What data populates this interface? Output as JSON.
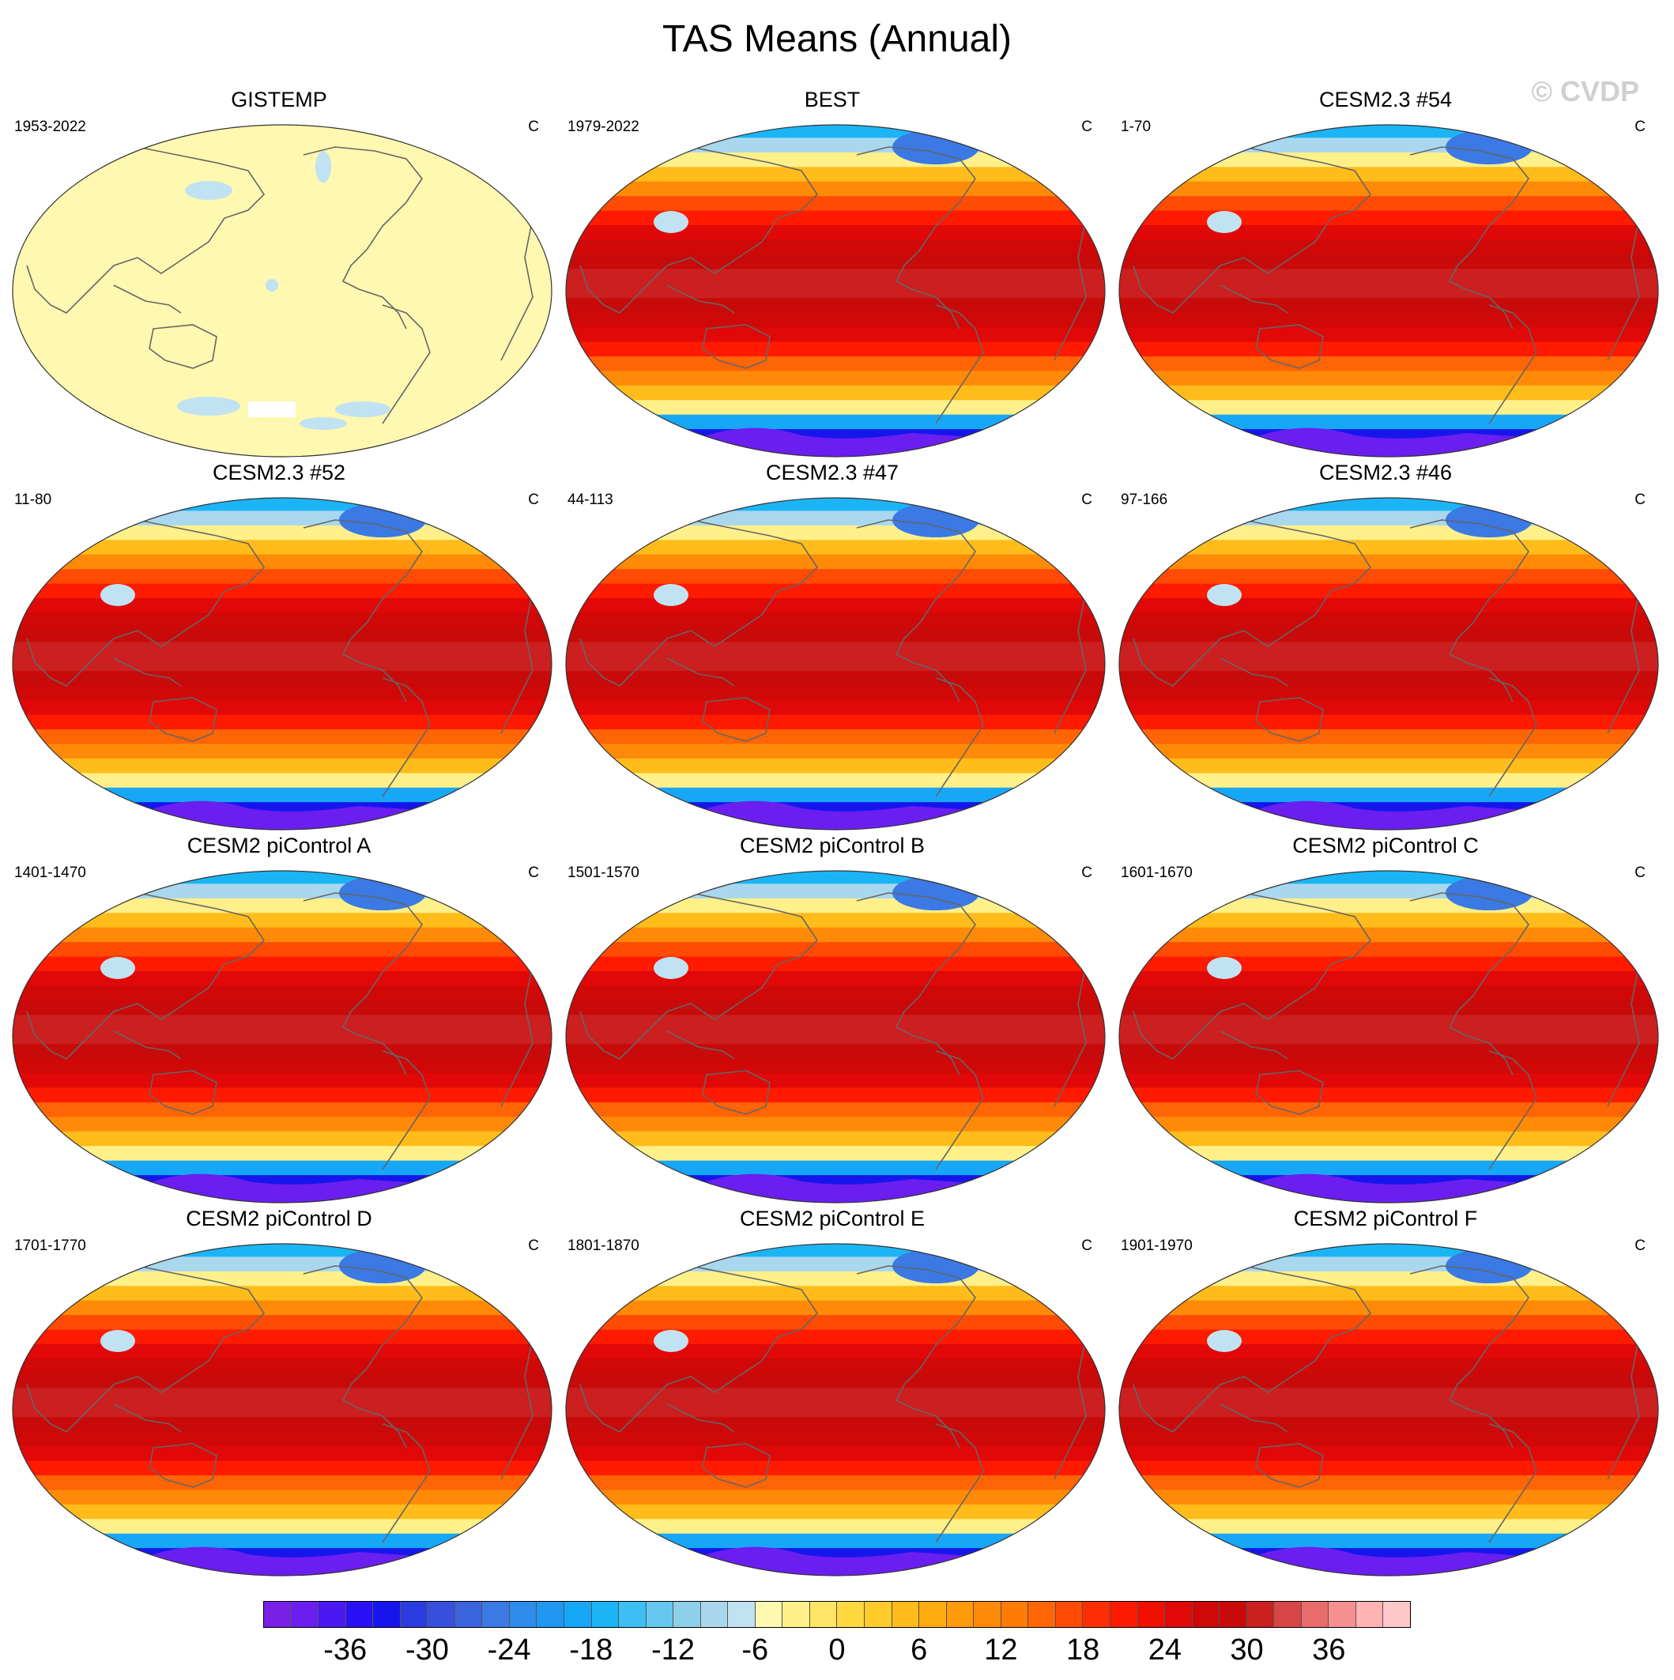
{
  "figure": {
    "title": "TAS Means (Annual)",
    "watermark": "© CVDP",
    "units": "C"
  },
  "panels": [
    {
      "name": "GISTEMP",
      "period": "1953-2022",
      "units": "C",
      "field": "anomaly"
    },
    {
      "name": "BEST",
      "period": "1979-2022",
      "units": "C",
      "field": "climatology"
    },
    {
      "name": "CESM2.3 #54",
      "period": "1-70",
      "units": "C",
      "field": "climatology"
    },
    {
      "name": "CESM2.3 #52",
      "period": "11-80",
      "units": "C",
      "field": "climatology"
    },
    {
      "name": "CESM2.3 #47",
      "period": "44-113",
      "units": "C",
      "field": "climatology"
    },
    {
      "name": "CESM2.3 #46",
      "period": "97-166",
      "units": "C",
      "field": "climatology"
    },
    {
      "name": "CESM2 piControl A",
      "period": "1401-1470",
      "units": "C",
      "field": "climatology"
    },
    {
      "name": "CESM2 piControl B",
      "period": "1501-1570",
      "units": "C",
      "field": "climatology"
    },
    {
      "name": "CESM2 piControl C",
      "period": "1601-1670",
      "units": "C",
      "field": "climatology"
    },
    {
      "name": "CESM2 piControl D",
      "period": "1701-1770",
      "units": "C",
      "field": "climatology"
    },
    {
      "name": "CESM2 piControl E",
      "period": "1801-1870",
      "units": "C",
      "field": "climatology"
    },
    {
      "name": "CESM2 piControl F",
      "period": "1901-1970",
      "units": "C",
      "field": "climatology"
    }
  ],
  "colorbar": {
    "tick_labels": [
      "-36",
      "-30",
      "-24",
      "-18",
      "-12",
      "-6",
      "0",
      "6",
      "12",
      "18",
      "24",
      "30",
      "36"
    ],
    "tick_values": [
      -36,
      -30,
      -24,
      -18,
      -12,
      -6,
      0,
      6,
      12,
      18,
      24,
      30,
      36
    ],
    "min": -42,
    "max": 42,
    "step": 2,
    "colors": [
      "#7a1fe6",
      "#6a1ff0",
      "#4a17f5",
      "#2a10f5",
      "#1616ec",
      "#2a3ce0",
      "#3550dc",
      "#3a64de",
      "#3b79e4",
      "#2e8cec",
      "#1f98f2",
      "#17a7f7",
      "#1bb5f6",
      "#3cbff2",
      "#66c8ee",
      "#8ed0ea",
      "#a9d8ee",
      "#c1e2f2",
      "#fff8b0",
      "#fff08a",
      "#ffe566",
      "#ffd93f",
      "#ffcb2a",
      "#ffbc1a",
      "#ffab10",
      "#ff9a0a",
      "#ff8a08",
      "#ff7a06",
      "#ff6405",
      "#ff4b04",
      "#ff2e02",
      "#ff1a00",
      "#f00f00",
      "#e00808",
      "#d00808",
      "#c80a0a",
      "#cc1f1f",
      "#d84646",
      "#e86c6c",
      "#f59090",
      "#ffb3b3",
      "#ffc8c8"
    ]
  }
}
